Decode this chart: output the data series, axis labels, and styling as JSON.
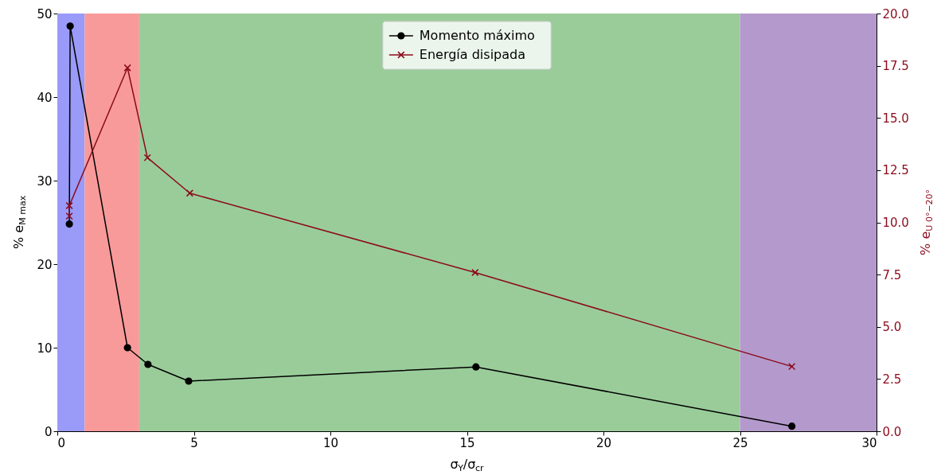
{
  "chart_data": {
    "type": "line",
    "xlabel": "σ$_{Y}$/σ$_{cr}$",
    "ylabel": "% e$_{M max}$",
    "y2label": "% e$_{U 0°−20°}$",
    "xlim": [
      0,
      30
    ],
    "xticks": [
      0,
      5,
      10,
      15,
      20,
      25,
      30
    ],
    "ylim": [
      0,
      50
    ],
    "yticks": [
      0,
      10,
      20,
      30,
      40,
      50
    ],
    "y2lim": [
      0,
      20
    ],
    "y2ticks": [
      {
        "value": 0,
        "label": "0.0"
      },
      {
        "value": 2.5,
        "label": "2.5"
      },
      {
        "value": 5,
        "label": "5.0"
      },
      {
        "value": 7.5,
        "label": "7.5"
      },
      {
        "value": 10,
        "label": "10.0"
      },
      {
        "value": 12.5,
        "label": "12.5"
      },
      {
        "value": 15,
        "label": "15.0"
      },
      {
        "value": 17.5,
        "label": "17.5"
      },
      {
        "value": 20,
        "label": "20.0"
      }
    ],
    "legend": "top",
    "grid": false,
    "bands": [
      {
        "axis": "x",
        "from": 0,
        "to": 1,
        "color": "#9a9af9"
      },
      {
        "axis": "x",
        "from": 1,
        "to": 3,
        "color": "#f89a9a"
      },
      {
        "axis": "x",
        "from": 3,
        "to": 25,
        "color": "#9acc9a"
      },
      {
        "axis": "x",
        "from": 25,
        "to": 30,
        "color": "#b49acc"
      }
    ],
    "series": [
      {
        "name": "Momento máximo",
        "color": "#000000",
        "marker": "circle",
        "x": [
          0.44,
          0.47,
          2.57,
          3.32,
          4.81,
          15.33,
          26.9
        ],
        "values": [
          24.8,
          48.5,
          10.0,
          8.0,
          6.0,
          7.7,
          0.6
        ]
      },
      {
        "name": "Energía disipada",
        "color": "#8b0a1a",
        "marker": "cross",
        "axis": "y2",
        "x": [
          0.44,
          0.44,
          2.57,
          3.3,
          4.85,
          15.3,
          26.9
        ],
        "values": [
          10.3,
          10.8,
          17.4,
          13.1,
          11.4,
          7.6,
          3.1
        ]
      }
    ]
  }
}
